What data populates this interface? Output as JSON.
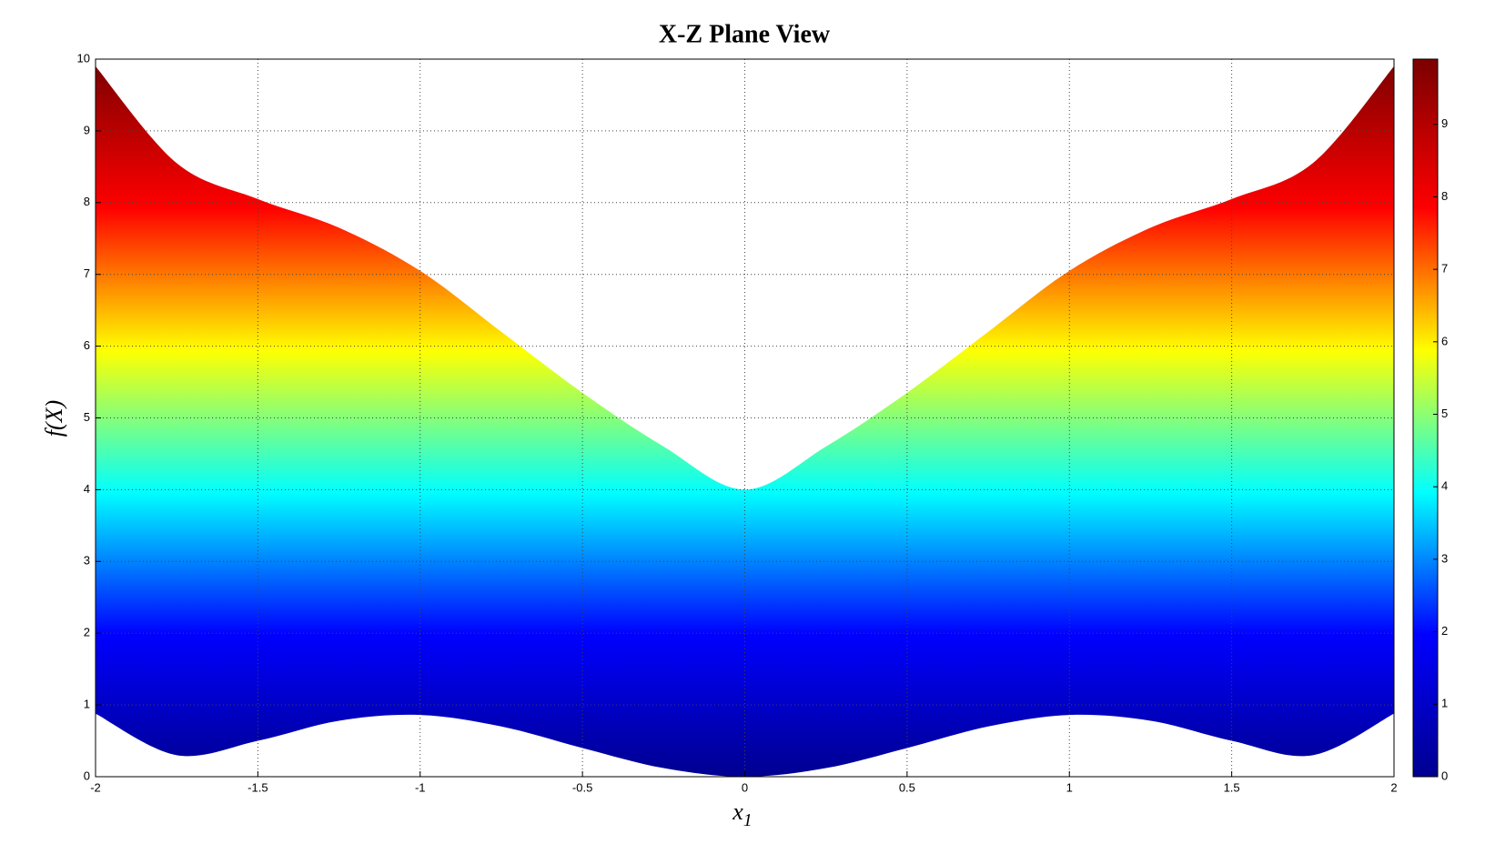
{
  "chart_data": {
    "type": "band",
    "title": "X-Z Plane View",
    "xlabel": "x",
    "xlabel_sub": "1",
    "ylabel": "f(X)",
    "x": [
      -2,
      -1.75,
      -1.5,
      -1.25,
      -1,
      -0.75,
      -0.5,
      -0.25,
      0,
      0.25,
      0.5,
      0.75,
      1,
      1.25,
      1.5,
      1.75,
      2
    ],
    "upper": [
      9.9,
      8.55,
      8.05,
      7.65,
      7.05,
      6.2,
      5.35,
      4.6,
      4.0,
      4.6,
      5.35,
      6.2,
      7.05,
      7.65,
      8.05,
      8.55,
      9.9
    ],
    "lower": [
      0.88,
      0.3,
      0.5,
      0.78,
      0.86,
      0.7,
      0.4,
      0.12,
      0,
      0.12,
      0.4,
      0.7,
      0.86,
      0.78,
      0.5,
      0.3,
      0.88
    ],
    "xlim": [
      -2,
      2
    ],
    "ylim": [
      0,
      10
    ],
    "xticks": [
      -2,
      -1.5,
      -1,
      -0.5,
      0,
      0.5,
      1,
      1.5,
      2
    ],
    "yticks": [
      0,
      1,
      2,
      3,
      4,
      5,
      6,
      7,
      8,
      9,
      10
    ],
    "grid": true,
    "colormap": [
      "#00008f",
      "#0000ff",
      "#00ffff",
      "#ffff00",
      "#ff0000",
      "#800000"
    ],
    "clim": [
      0,
      9.9
    ],
    "cbticks": [
      0,
      1,
      2,
      3,
      4,
      5,
      6,
      7,
      8,
      9
    ]
  }
}
